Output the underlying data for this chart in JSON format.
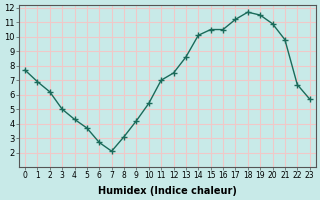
{
  "x": [
    0,
    1,
    2,
    3,
    4,
    5,
    6,
    7,
    8,
    9,
    10,
    11,
    12,
    13,
    14,
    15,
    16,
    17,
    18,
    19,
    20,
    21,
    22,
    23
  ],
  "y": [
    7.7,
    6.9,
    6.2,
    5.0,
    4.3,
    3.7,
    2.7,
    2.1,
    3.1,
    4.2,
    5.4,
    7.0,
    7.5,
    8.6,
    10.1,
    10.5,
    10.5,
    11.2,
    11.7,
    11.5,
    10.9,
    9.8,
    6.7,
    5.7
  ],
  "line_color": "#1a6b5a",
  "marker": "+",
  "marker_size": 5,
  "bg_color": "#c8eae8",
  "grid_color": "#f0c8c8",
  "xlabel": "Humidex (Indice chaleur)",
  "ylim": [
    1,
    12
  ],
  "xlim": [
    0,
    23
  ],
  "yticks": [
    2,
    3,
    4,
    5,
    6,
    7,
    8,
    9,
    10,
    11,
    12
  ],
  "xticks": [
    0,
    1,
    2,
    3,
    4,
    5,
    6,
    7,
    8,
    9,
    10,
    11,
    12,
    13,
    14,
    15,
    16,
    17,
    18,
    19,
    20,
    21,
    22,
    23
  ]
}
